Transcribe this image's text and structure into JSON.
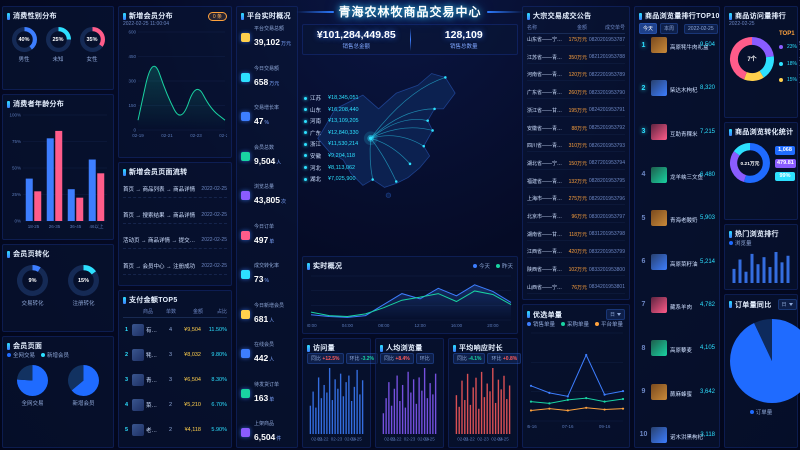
{
  "header": {
    "title": "青海农林牧商品交易中心"
  },
  "kpi": {
    "amount": "¥101,284,449.85",
    "amount_label": "销售总金额",
    "count": "128,109",
    "count_label": "销售总数量"
  },
  "panels": {
    "gender": {
      "title": "消费性别分布"
    },
    "age": {
      "title": "消费者年龄分布"
    },
    "conversion": {
      "title": "会员页转化"
    },
    "member": {
      "title": "会员页面"
    },
    "new_member": {
      "title": "新增会员分布",
      "updated": "2022-02-25 11:00:04",
      "badge": "0 条"
    },
    "flow": {
      "title": "新增会员页面流转",
      "items": [
        {
          "path": "首页 → 商品列表 → 商品详情",
          "date": "2022-02-25"
        },
        {
          "path": "首页 → 搜索结果 → 商品详情",
          "date": "2022-02-25"
        },
        {
          "path": "活动页 → 商品详情 → 提交订单",
          "date": "2022-02-25"
        },
        {
          "path": "首页 → 会员中心 → 注册成功",
          "date": "2022-02-25"
        }
      ]
    },
    "pay_top5": {
      "title": "支付金额TOP5",
      "columns": [
        "商品",
        "单数",
        "金额",
        "占比"
      ],
      "rows": [
        {
          "name": "有机枸杞礼盒",
          "count": "4",
          "amount": "¥9,504",
          "ratio": "11.50%"
        },
        {
          "name": "牦牛肉干500g",
          "count": "3",
          "amount": "¥8,032",
          "ratio": "9.80%"
        },
        {
          "name": "青稞米10kg",
          "count": "3",
          "amount": "¥6,504",
          "ratio": "8.30%"
        },
        {
          "name": "菜籽油5L",
          "count": "2",
          "amount": "¥5,210",
          "ratio": "6.70%"
        },
        {
          "name": "老酸奶12杯装",
          "count": "2",
          "amount": "¥4,118",
          "ratio": "5.90%"
        }
      ]
    },
    "platform": {
      "title": "平台实时概况",
      "stats": [
        {
          "label": "平台交易总额",
          "value": "39,102",
          "unit": "万元",
          "color": "#ffd04d"
        },
        {
          "label": "今日交易额",
          "value": "658",
          "unit": "万元",
          "color": "#2de0ff"
        },
        {
          "label": "交易增长率",
          "value": "47",
          "unit": "%",
          "color": "#3d7eff"
        },
        {
          "label": "会员总数",
          "value": "9,504",
          "unit": "人",
          "color": "#19d3a2"
        },
        {
          "label": "浏览总量",
          "value": "43,805",
          "unit": "次",
          "color": "#8a5cff"
        },
        {
          "label": "今日订单",
          "value": "497",
          "unit": "单",
          "color": "#ff5c8a"
        },
        {
          "label": "成交转化率",
          "value": "73",
          "unit": "%",
          "color": "#2de0ff"
        },
        {
          "label": "今日新增会员",
          "value": "681",
          "unit": "人",
          "color": "#ffd04d"
        },
        {
          "label": "在线会员",
          "value": "442",
          "unit": "人",
          "color": "#3d7eff"
        },
        {
          "label": "待发货订单",
          "value": "163",
          "unit": "单",
          "color": "#19d3a2"
        },
        {
          "label": "上架商品",
          "value": "6,504",
          "unit": "件",
          "color": "#8a5cff"
        }
      ]
    },
    "map": {
      "provinces": [
        {
          "name": "江苏",
          "value": "¥18,345,051"
        },
        {
          "name": "山东",
          "value": "¥16,208,440"
        },
        {
          "name": "河南",
          "value": "¥13,109,205"
        },
        {
          "name": "广东",
          "value": "¥12,840,330"
        },
        {
          "name": "浙江",
          "value": "¥11,530,214"
        },
        {
          "name": "安徽",
          "value": "¥9,204,118"
        },
        {
          "name": "河北",
          "value": "¥8,113,062"
        },
        {
          "name": "湖北",
          "value": "¥7,025,900"
        }
      ]
    },
    "realtime": {
      "title": "实时概况"
    },
    "minis": [
      {
        "title": "访问量",
        "tb_label": "同比",
        "tb": "+12.5%",
        "hb_label": "环比",
        "hb": "-3.2%"
      },
      {
        "title": "人均浏览量",
        "tb_label": "同比",
        "tb": "+8.4%",
        "hb_label": "环比",
        "hb": "+1.6%"
      },
      {
        "title": "平均响应时长",
        "tb_label": "同比",
        "tb": "-4.1%",
        "hb_label": "环比",
        "hb": "+0.8%"
      }
    ],
    "deals": {
      "title": "大宗交易成交公告",
      "columns": [
        "名称",
        "金额",
        "成交单号"
      ],
      "rows": [
        {
          "name": "山东省——宁夏回族自治区粮油果蔬大宗交易",
          "amount": "175万元",
          "code": "0820201953787"
        },
        {
          "name": "江苏省——青海省牛羊肉大宗交易",
          "amount": "350万元",
          "code": "0821201953788"
        },
        {
          "name": "河南省——青海省青稞大宗交易",
          "amount": "120万元",
          "code": "0822201953789"
        },
        {
          "name": "广东省——青海省枸杞大宗交易",
          "amount": "260万元",
          "code": "0823201953790"
        },
        {
          "name": "浙江省——甘肃省菜籽油大宗交易",
          "amount": "195万元",
          "code": "0824201953791"
        },
        {
          "name": "安徽省——青海省藜麦大宗交易",
          "amount": "88万元",
          "code": "0825201953792"
        },
        {
          "name": "四川省——青海省牦牛肉大宗交易",
          "amount": "310万元",
          "code": "0826201953793"
        },
        {
          "name": "湖北省——宁夏回族自治区滩羊肉大宗交易",
          "amount": "150万元",
          "code": "0827201953794"
        },
        {
          "name": "福建省——青海省乳制品大宗交易",
          "amount": "132万元",
          "code": "0828201953795"
        },
        {
          "name": "上海市——青海省三文鱼大宗交易",
          "amount": "275万元",
          "code": "0829201953796"
        },
        {
          "name": "北京市——青海省蜂蜜大宗交易",
          "amount": "96万元",
          "code": "0830201953797"
        },
        {
          "name": "湖南省——甘肃省苹果大宗交易",
          "amount": "118万元",
          "code": "0831201953798"
        },
        {
          "name": "江西省——青海省虫草大宗交易",
          "amount": "420万元",
          "code": "0832201953799"
        },
        {
          "name": "陕西省——青海省红枣大宗交易",
          "amount": "102万元",
          "code": "0833201953800"
        },
        {
          "name": "山西省——宁夏回族自治区小米大宗交易",
          "amount": "76万元",
          "code": "0834201953801"
        }
      ]
    },
    "orders_trend": {
      "title": "优选单量",
      "range": "日"
    },
    "top10": {
      "title": "商品浏览量排行TOP10",
      "tabs": [
        "今天",
        "本周"
      ],
      "date": "2022-02-25",
      "items": [
        {
          "name": "高原牦牛肉礼盒",
          "value": "9,504",
          "w": "100%"
        },
        {
          "name": "柴达木枸杞",
          "value": "8,320",
          "w": "88%"
        },
        {
          "name": "互助青稞米",
          "value": "7,215",
          "w": "76%"
        },
        {
          "name": "龙羊峡三文鱼",
          "value": "6,480",
          "w": "68%"
        },
        {
          "name": "青海老酸奶",
          "value": "5,903",
          "w": "62%"
        },
        {
          "name": "高原菜籽油",
          "value": "5,214",
          "w": "55%"
        },
        {
          "name": "藏系羊肉",
          "value": "4,782",
          "w": "50%"
        },
        {
          "name": "高原藜麦",
          "value": "4,105",
          "w": "43%"
        },
        {
          "name": "蕨麻蜂蜜",
          "value": "3,642",
          "w": "38%"
        },
        {
          "name": "诺木洪黑枸杞",
          "value": "3,118",
          "w": "33%"
        }
      ]
    },
    "category": {
      "title": "商品访问量排行",
      "date": "2022-02-25",
      "top_badge": "TOP1",
      "rows": [
        {
          "name": "米面粮油",
          "pct": "23%",
          "count": "57个",
          "color": "#8a5cff"
        },
        {
          "name": "新鲜蔬菜",
          "pct": "18%",
          "count": "31个",
          "color": "#2de0ff"
        },
        {
          "name": "时令水果",
          "pct": "15%",
          "count": "19个",
          "color": "#ffd04d"
        }
      ]
    },
    "view_stats": {
      "title": "商品浏览转化统计",
      "stats": [
        {
          "value": "1,068",
          "label": "浏览量",
          "color": "#1f6bff"
        },
        {
          "value": "479.81",
          "label": "销售额(万元)",
          "color": "#8a5cff"
        },
        {
          "value": "99%",
          "label": "转化率",
          "color": "#2de0ff"
        }
      ]
    },
    "hot": {
      "title": "热门浏览排行",
      "legend": "浏览量"
    },
    "order_ratio": {
      "title": "订单量同比",
      "range": "日",
      "legend": "订单量"
    }
  },
  "chart_data": [
    {
      "id": "gender",
      "type": "donut-set",
      "items": [
        {
          "label": "男性",
          "value": 40,
          "pct": "40%",
          "color": "#3d7eff"
        },
        {
          "label": "未知",
          "value": 25,
          "pct": "25%",
          "color": "#2de0ff"
        },
        {
          "label": "女性",
          "value": 35,
          "pct": "35%",
          "color": "#ff5c8a"
        }
      ]
    },
    {
      "id": "age",
      "type": "bars",
      "categories": [
        "18-25",
        "26-35",
        "36-45",
        "46以上"
      ],
      "series": [
        {
          "name": "男",
          "color": "#3d7eff",
          "values": [
            40,
            78,
            30,
            58
          ]
        },
        {
          "name": "女",
          "color": "#ff5c8a",
          "values": [
            28,
            85,
            22,
            45
          ]
        }
      ],
      "yticks": [
        "0%",
        "25%",
        "50%",
        "75%",
        "100%"
      ],
      "ymax": 100
    },
    {
      "id": "conversion",
      "type": "donut-set",
      "items": [
        {
          "label": "交易转化",
          "value": 9,
          "pct": "9%",
          "color": "#3d7eff"
        },
        {
          "label": "注册转化",
          "value": 15,
          "pct": "15%",
          "color": "#2de0ff"
        }
      ]
    },
    {
      "id": "member",
      "type": "pie-set",
      "legend": [
        {
          "name": "全网交易",
          "color": "#1f6bff"
        },
        {
          "name": "新增会员",
          "color": "#2de0ff"
        }
      ],
      "items": [
        {
          "label": "全网交易",
          "slices": [
            {
              "v": 76,
              "c": "#1f6bff"
            },
            {
              "v": 24,
              "c": "#123261"
            }
          ]
        },
        {
          "label": "新增会员",
          "slices": [
            {
              "v": 64,
              "c": "#1f6bff"
            },
            {
              "v": 36,
              "c": "#123261"
            }
          ]
        }
      ]
    },
    {
      "id": "newmember",
      "type": "area",
      "x": [
        "02-19",
        "02-20",
        "02-21",
        "02-22",
        "02-23",
        "02-24",
        "02-25"
      ],
      "values": [
        60,
        470,
        210,
        40,
        300,
        130,
        60
      ],
      "color": "#19d3a2",
      "ymax": 600,
      "yticks": [
        "0",
        "150",
        "300",
        "450",
        "600"
      ]
    },
    {
      "id": "realtime",
      "type": "multiline",
      "x": [
        "00:00",
        "02:00",
        "04:00",
        "06:00",
        "08:00",
        "10:00",
        "12:00",
        "14:00",
        "16:00",
        "18:00",
        "20:00",
        "22:00"
      ],
      "series": [
        {
          "name": "今天",
          "color": "#3d7eff",
          "values": [
            12,
            8,
            6,
            10,
            35,
            60,
            48,
            72,
            55,
            80,
            65,
            40
          ]
        },
        {
          "name": "昨天",
          "color": "#19d3a2",
          "values": [
            18,
            10,
            8,
            14,
            28,
            45,
            52,
            60,
            42,
            66,
            58,
            35
          ]
        }
      ],
      "ymax": 100,
      "fill": true
    },
    {
      "id": "mini1",
      "type": "minibars",
      "color": "#3d7eff",
      "x": [
        "02-21",
        "02-22",
        "02-23",
        "02-24",
        "02-25"
      ],
      "values": [
        30,
        45,
        28,
        60,
        38,
        52,
        44,
        70,
        36,
        58,
        48,
        64,
        40,
        55,
        62,
        35,
        50,
        68,
        42,
        57
      ]
    },
    {
      "id": "mini2",
      "type": "minibars",
      "color": "#8a5cff",
      "x": [
        "02-21",
        "02-22",
        "02-23",
        "02-24",
        "02-25"
      ],
      "values": [
        22,
        38,
        55,
        30,
        48,
        62,
        35,
        52,
        28,
        66,
        44,
        58,
        32,
        60,
        46,
        70,
        38,
        54,
        42,
        64
      ]
    },
    {
      "id": "mini3",
      "type": "minibars",
      "color": "#ff5c5c",
      "x": [
        "02-21",
        "02-22",
        "02-23",
        "02-24",
        "02-25"
      ],
      "values": [
        40,
        28,
        55,
        35,
        62,
        30,
        48,
        58,
        26,
        64,
        38,
        52,
        44,
        68,
        32,
        56,
        46,
        60,
        36,
        50
      ]
    },
    {
      "id": "youxuan",
      "type": "multiline",
      "x": [
        "05-16",
        "06-16",
        "07-16",
        "08-16",
        "09-16",
        "10-16"
      ],
      "series": [
        {
          "name": "销售单量",
          "color": "#3d7eff",
          "values": [
            40,
            32,
            28,
            75,
            30,
            34
          ]
        },
        {
          "name": "采购单量",
          "color": "#19d3a2",
          "values": [
            22,
            20,
            24,
            26,
            22,
            25
          ]
        },
        {
          "name": "平台单量",
          "color": "#ffa23d",
          "values": [
            12,
            14,
            12,
            15,
            13,
            14
          ]
        }
      ],
      "ymax": 100,
      "dots": true
    },
    {
      "id": "category",
      "type": "donut",
      "center": "7个",
      "slices": [
        {
          "v": 23,
          "c": "#8a5cff"
        },
        {
          "v": 18,
          "c": "#2de0ff"
        },
        {
          "v": 15,
          "c": "#ffd04d"
        },
        {
          "v": 44,
          "c": "#ff5c8a"
        }
      ]
    },
    {
      "id": "viewstats",
      "type": "donut",
      "center": "0.21万元",
      "slices": [
        {
          "v": 55,
          "c": "#1f6bff"
        },
        {
          "v": 30,
          "c": "#8a5cff"
        },
        {
          "v": 15,
          "c": "#2de0ff"
        }
      ]
    },
    {
      "id": "hot",
      "type": "minibars",
      "color": "#3d7eff",
      "x": [],
      "values": [
        30,
        50,
        24,
        62,
        40,
        55,
        34,
        66,
        44,
        58
      ]
    },
    {
      "id": "orderpie",
      "type": "pie",
      "slices": [
        {
          "v": 93,
          "c": "#1f6bff"
        },
        {
          "v": 7,
          "c": "#0e2a5c"
        }
      ]
    }
  ]
}
